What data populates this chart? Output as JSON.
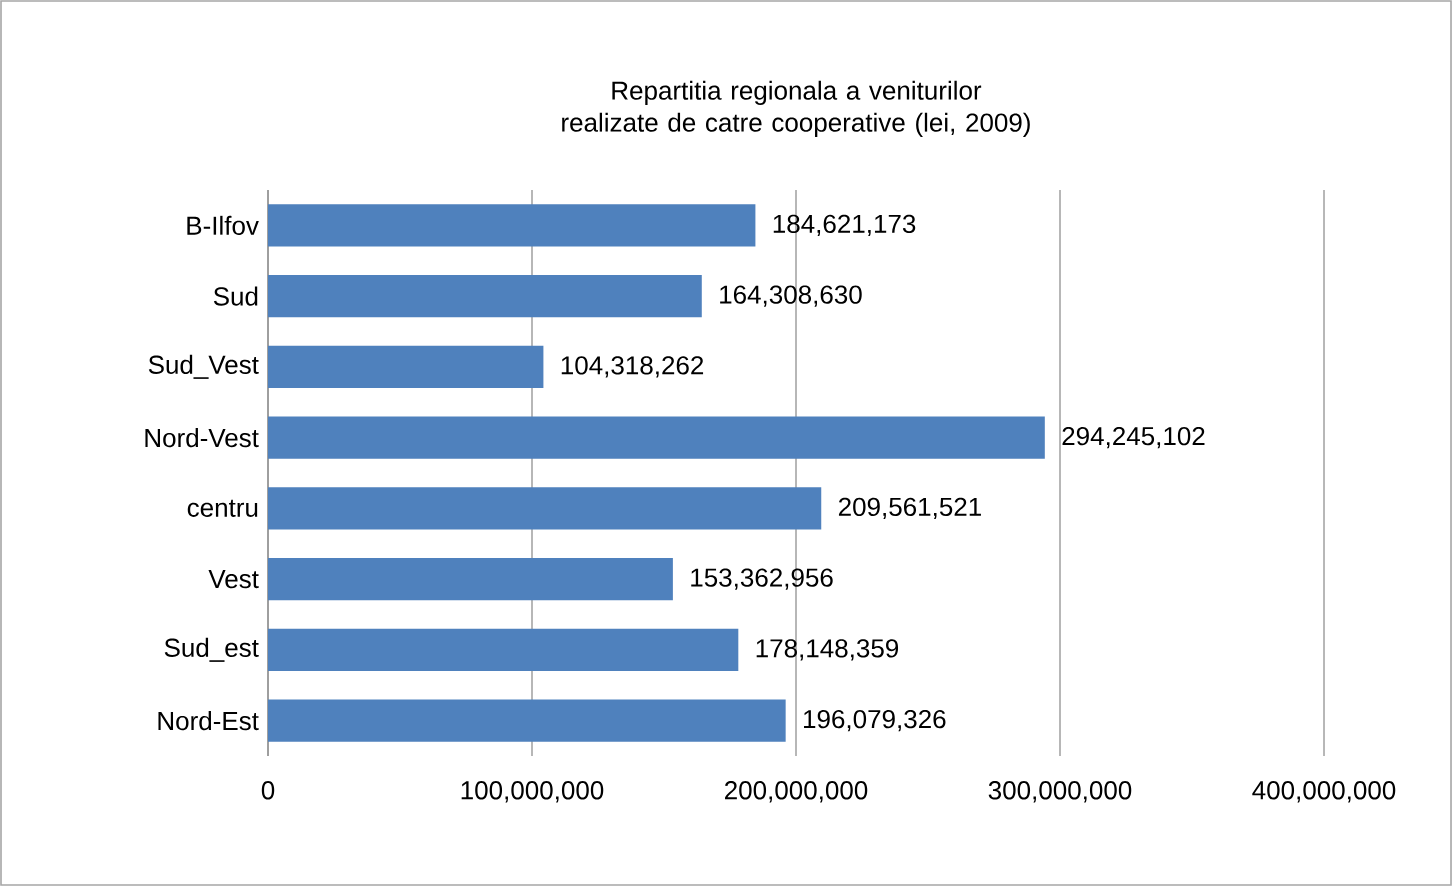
{
  "chart_data": {
    "type": "bar",
    "orientation": "horizontal",
    "title": "Repartitia regionala a veniturilor realizate de catre cooperative (lei, 2009)",
    "categories": [
      "B-Ilfov",
      "Sud",
      "Sud_Vest",
      "Nord-Vest",
      "centru",
      "Vest",
      "Sud_est",
      "Nord-Est"
    ],
    "values": [
      184621173,
      164308630,
      104318262,
      294245102,
      209561521,
      153362956,
      178148359,
      196079326
    ],
    "value_labels": [
      "184,621,173",
      "164,308,630",
      "104,318,262",
      "294,245,102",
      "209,561,521",
      "153,362,956",
      "178,148,359",
      "196,079,326"
    ],
    "color": "#4f81bd",
    "xlim": [
      0,
      400000000
    ],
    "xticks": [
      0,
      {
        "value": 100000000,
        "label": "100,000,000"
      },
      {
        "value": 200000000,
        "label": "200,000,000"
      },
      {
        "value": 300000000,
        "label": "300,000,000"
      },
      {
        "value": 400000000,
        "label": "400,000,000"
      }
    ],
    "grid": "x"
  }
}
